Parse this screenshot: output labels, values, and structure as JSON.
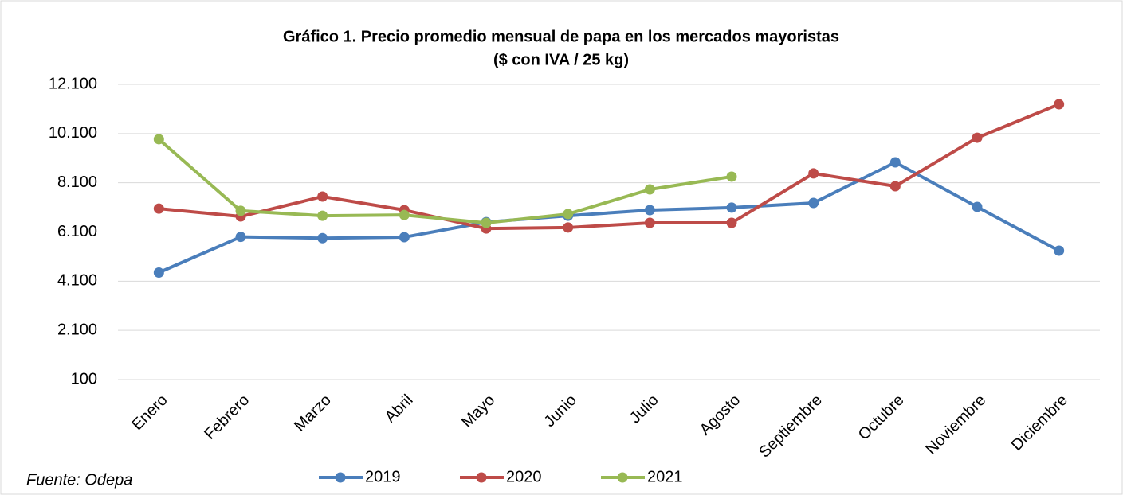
{
  "chart_data": {
    "type": "line",
    "title": "Gráfico 1. Precio promedio mensual de papa en los mercados mayoristas",
    "subtitle": "($ con IVA / 25 kg)",
    "source": "Fuente: Odepa",
    "categories": [
      "Enero",
      "Febrero",
      "Marzo",
      "Abril",
      "Mayo",
      "Junio",
      "Julio",
      "Agosto",
      "Septiembre",
      "Octubre",
      "Noviembre",
      "Diciembre"
    ],
    "series": [
      {
        "name": "2019",
        "color": "#4a7ebb",
        "values": [
          4450,
          5900,
          5850,
          5890,
          6500,
          6760,
          6990,
          7090,
          7280,
          8930,
          7120,
          5340
        ]
      },
      {
        "name": "2020",
        "color": "#be4b48",
        "values": [
          7050,
          6730,
          7540,
          6990,
          6240,
          6280,
          6470,
          6470,
          8480,
          7960,
          9930,
          11290
        ]
      },
      {
        "name": "2021",
        "color": "#98b954",
        "values": [
          9870,
          6960,
          6760,
          6790,
          6470,
          6830,
          7830,
          8350,
          null,
          null,
          null,
          null
        ]
      }
    ],
    "ylim": [
      100,
      12100
    ],
    "yticks": [
      {
        "value": 100,
        "label": "100"
      },
      {
        "value": 2100,
        "label": "2.100"
      },
      {
        "value": 4100,
        "label": "4.100"
      },
      {
        "value": 6100,
        "label": "6.100"
      },
      {
        "value": 8100,
        "label": "8.100"
      },
      {
        "value": 10100,
        "label": "10.100"
      },
      {
        "value": 12100,
        "label": "12.100"
      }
    ],
    "grid": true,
    "legend": "bottom"
  }
}
